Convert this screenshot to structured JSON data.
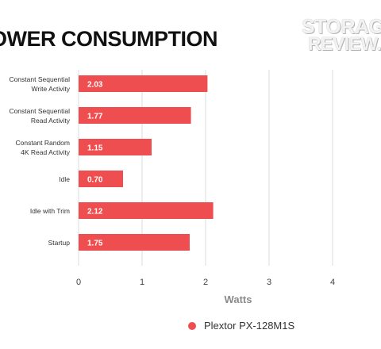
{
  "header": {
    "title": "OWER CONSUMPTION"
  },
  "watermark": {
    "line1": "STORAGE",
    "line2": "REVIEW.COM"
  },
  "chart_data": {
    "type": "bar",
    "orientation": "horizontal",
    "categories": [
      [
        "Constant Sequential",
        "Write Activity"
      ],
      [
        "Constant Sequential",
        "Read Activity"
      ],
      [
        "Constant Random",
        "4K Read Activity"
      ],
      [
        "Idle"
      ],
      [
        "Idle with Trim"
      ],
      [
        "Startup"
      ]
    ],
    "series": [
      {
        "name": "Plextor PX-128M1S",
        "values": [
          2.03,
          1.77,
          1.15,
          0.7,
          2.12,
          1.75
        ],
        "color": "#ef4e51"
      }
    ],
    "value_labels": [
      "2.03",
      "1.77",
      "1.15",
      "0.70",
      "2.12",
      "1.75"
    ],
    "xlabel": "Watts",
    "xlim": [
      0,
      5
    ],
    "xticks": [
      0,
      1,
      2,
      3,
      4
    ],
    "grid": true,
    "legend_position": "bottom"
  },
  "colors": {
    "bar": "#ef4e51",
    "grid": "#dcdcdc",
    "axis_text": "#444444",
    "axis_title": "#8a8a8a"
  }
}
